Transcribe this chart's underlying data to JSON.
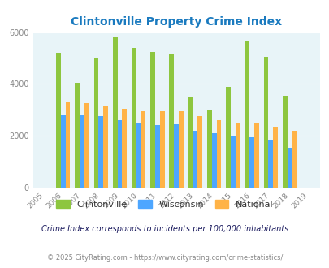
{
  "title": "Clintonville Property Crime Index",
  "years": [
    2005,
    2006,
    2007,
    2008,
    2009,
    2010,
    2011,
    2012,
    2013,
    2014,
    2015,
    2016,
    2017,
    2018,
    2019
  ],
  "clintonville": [
    0,
    5200,
    4050,
    5000,
    5800,
    5400,
    5250,
    5150,
    3500,
    3000,
    3900,
    5650,
    5050,
    3550,
    0
  ],
  "wisconsin": [
    0,
    2800,
    2800,
    2750,
    2600,
    2500,
    2400,
    2450,
    2200,
    2100,
    2000,
    1950,
    1850,
    1550,
    0
  ],
  "national": [
    0,
    3300,
    3250,
    3150,
    3050,
    2950,
    2950,
    2950,
    2750,
    2600,
    2500,
    2500,
    2350,
    2200,
    0
  ],
  "clintonville_color": "#8dc63f",
  "wisconsin_color": "#4da6ff",
  "national_color": "#ffb347",
  "bg_color": "#e8f4f8",
  "title_color": "#1a7abf",
  "ylim": [
    0,
    6000
  ],
  "yticks": [
    0,
    2000,
    4000,
    6000
  ],
  "note": "Crime Index corresponds to incidents per 100,000 inhabitants",
  "footer": "© 2025 CityRating.com - https://www.cityrating.com/crime-statistics/",
  "bar_width": 0.25,
  "legend_labels": [
    "Clintonville",
    "Wisconsin",
    "National"
  ],
  "grid_color": "#ffffff",
  "tick_color": "#888888",
  "note_color": "#1a1a5e",
  "footer_color": "#888888"
}
